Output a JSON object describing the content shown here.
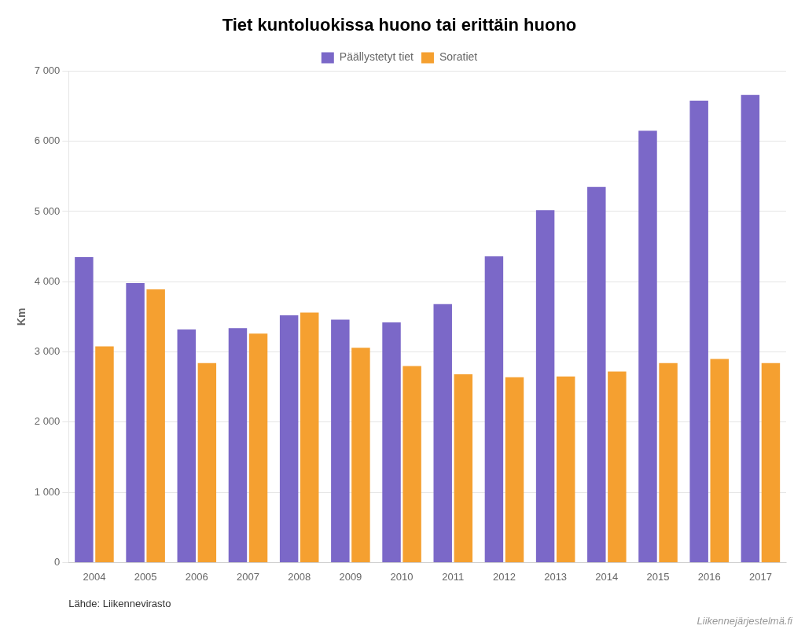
{
  "chart_data": {
    "type": "bar",
    "title": "Tiet kuntoluokissa huono tai erittäin huono",
    "y_label": "Km",
    "categories": [
      "2004",
      "2005",
      "2006",
      "2007",
      "2008",
      "2009",
      "2010",
      "2011",
      "2012",
      "2013",
      "2014",
      "2015",
      "2016",
      "2017"
    ],
    "series": [
      {
        "name": "Päällystetyt tiet",
        "color": "#7B68C8",
        "values": [
          4350,
          3980,
          3320,
          3340,
          3520,
          3460,
          3420,
          3680,
          4360,
          5020,
          5350,
          6150,
          6580,
          6660
        ]
      },
      {
        "name": "Soratiet",
        "color": "#F5A030",
        "values": [
          3080,
          3890,
          2840,
          3260,
          3560,
          3060,
          2800,
          2680,
          2640,
          2650,
          2720,
          2840,
          2900,
          2840
        ]
      }
    ],
    "ylim": [
      0,
      7000
    ],
    "yticks": [
      0,
      {
        "value": 1000,
        "label": "1 000"
      },
      {
        "value": 2000,
        "label": "2 000"
      },
      {
        "value": 3000,
        "label": "3 000"
      },
      {
        "value": 4000,
        "label": "4 000"
      },
      {
        "value": 5000,
        "label": "5 000"
      },
      {
        "value": 6000,
        "label": "6 000"
      },
      {
        "value": 7000,
        "label": "7 000"
      }
    ],
    "grid": true,
    "legend": "top",
    "annotations": [
      "Lähde: Liikennevirasto",
      "Liikennejärjestelmä.fi"
    ]
  }
}
